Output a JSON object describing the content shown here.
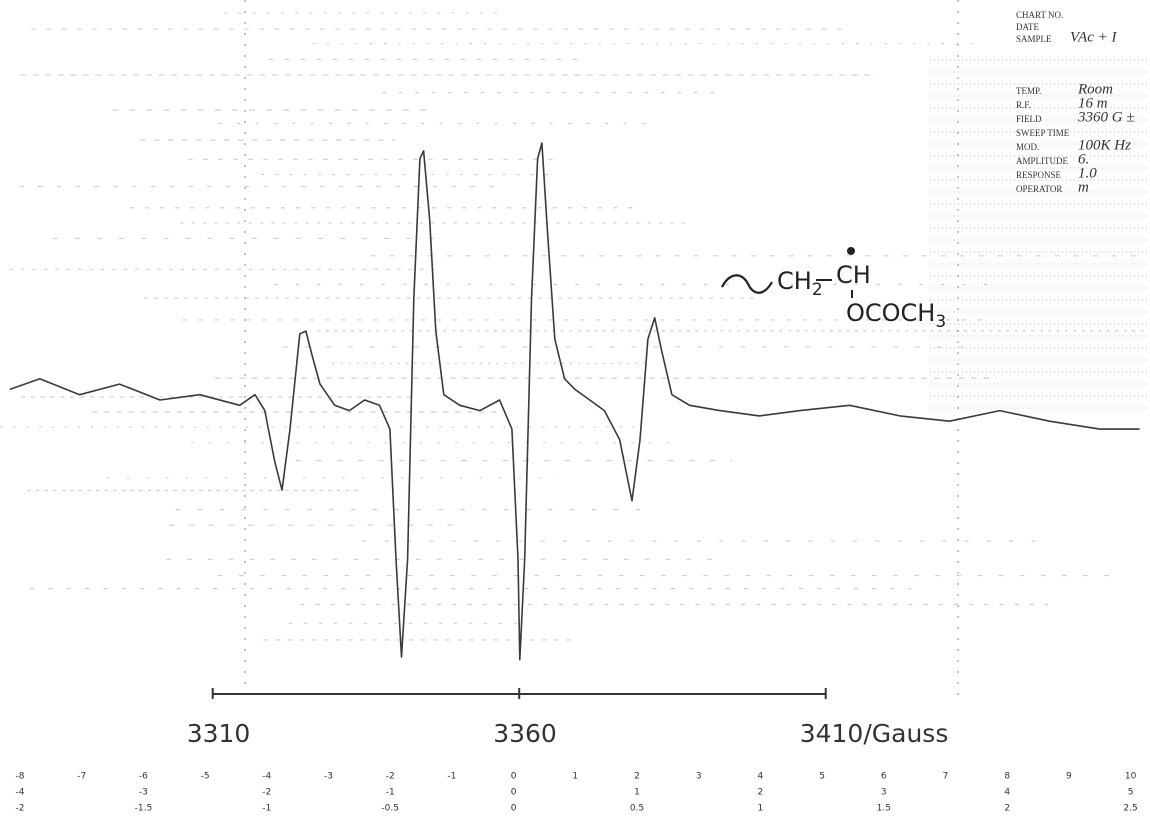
{
  "chart_data": {
    "type": "line",
    "x": [
      3276.9,
      3281.8,
      3288.3,
      3294.8,
      3301.4,
      3307.9,
      3314.4,
      3316.9,
      3318.5,
      3320.1,
      3321.3,
      3322.6,
      3324.2,
      3325.2,
      3326.2,
      3327.5,
      3329.9,
      3332.3,
      3334.8,
      3337.2,
      3338.9,
      3339.9,
      3340.8,
      3341.8,
      3342.8,
      3343.8,
      3344.4,
      3345.4,
      3346.4,
      3347.7,
      3350.3,
      3353.6,
      3356.8,
      3358.8,
      3359.8,
      3360.1,
      3360.9,
      3362.0,
      3363.0,
      3363.7,
      3364.6,
      3365.8,
      3367.4,
      3369.1,
      3371.5,
      3373.9,
      3376.4,
      3377.7,
      3378.4,
      3379.7,
      3381.0,
      3382.1,
      3383.2,
      3384.9,
      3387.8,
      3392.7,
      3399.2,
      3405.8,
      3413.9,
      3422.1,
      3430.2,
      3438.4,
      3446.5,
      3454.7,
      3461.2
    ],
    "series": [
      {
        "color": "#3a3a3a",
        "values": [
          0.04,
          0.08,
          0.02,
          0.06,
          0,
          0.02,
          -0.02,
          0.02,
          -0.04,
          -0.23,
          -0.34,
          -0.11,
          0.25,
          0.26,
          0.17,
          0.06,
          -0.02,
          -0.04,
          0,
          -0.02,
          -0.11,
          -0.6,
          -0.97,
          -0.6,
          0.38,
          0.91,
          0.94,
          0.68,
          0.26,
          0.02,
          -0.02,
          -0.04,
          0,
          -0.11,
          -0.6,
          -0.98,
          -0.6,
          0.38,
          0.91,
          0.97,
          0.64,
          0.23,
          0.08,
          0.04,
          0,
          -0.04,
          -0.15,
          -0.3,
          -0.38,
          -0.15,
          0.23,
          0.31,
          0.19,
          0.02,
          -0.02,
          -0.04,
          -0.06,
          -0.04,
          -0.02,
          -0.06,
          -0.08,
          -0.04,
          -0.08,
          -0.11,
          -0.11
        ]
      }
    ],
    "xlim": [
      3275.3,
      3462.9
    ],
    "ylim": [
      -1,
      1
    ],
    "xticks": [
      3310,
      3360,
      {
        "value": 3410,
        "label": "3410/Gauss"
      }
    ],
    "structure": {
      "chain": [
        "CH",
        "2"
      ],
      "radical": "CH",
      "substituent": [
        "OCOCH",
        "3"
      ]
    },
    "scale_rows": [
      [
        -8,
        -7,
        -6,
        -5,
        -4,
        -3,
        -2,
        -1,
        0,
        1,
        2,
        3,
        4,
        5,
        6,
        7,
        8,
        9,
        10
      ],
      [
        -4,
        -3,
        -2,
        -1,
        0,
        1,
        2,
        3,
        4,
        5
      ],
      [
        -2,
        -1.5,
        -1,
        -0.5,
        0,
        0.5,
        1,
        1.5,
        2,
        2.5
      ]
    ],
    "header": [
      {
        "label": "CHART NO."
      },
      {
        "label": "DATE"
      },
      {
        "label": "SAMPLE",
        "value": "VAc + I"
      },
      {
        "label": "TEMP.",
        "value": "Room"
      },
      {
        "label": "R.F.",
        "value": "16 m"
      },
      {
        "label": "FIELD",
        "value": "3360 G ±"
      },
      {
        "label": "SWEEP TIME"
      },
      {
        "label": "MOD.",
        "value": "100K Hz"
      },
      {
        "label": "AMPLITUDE",
        "value": "6."
      },
      {
        "label": "RESPONSE",
        "value": "1.0"
      },
      {
        "label": "OPERATOR",
        "value": "m"
      }
    ]
  }
}
